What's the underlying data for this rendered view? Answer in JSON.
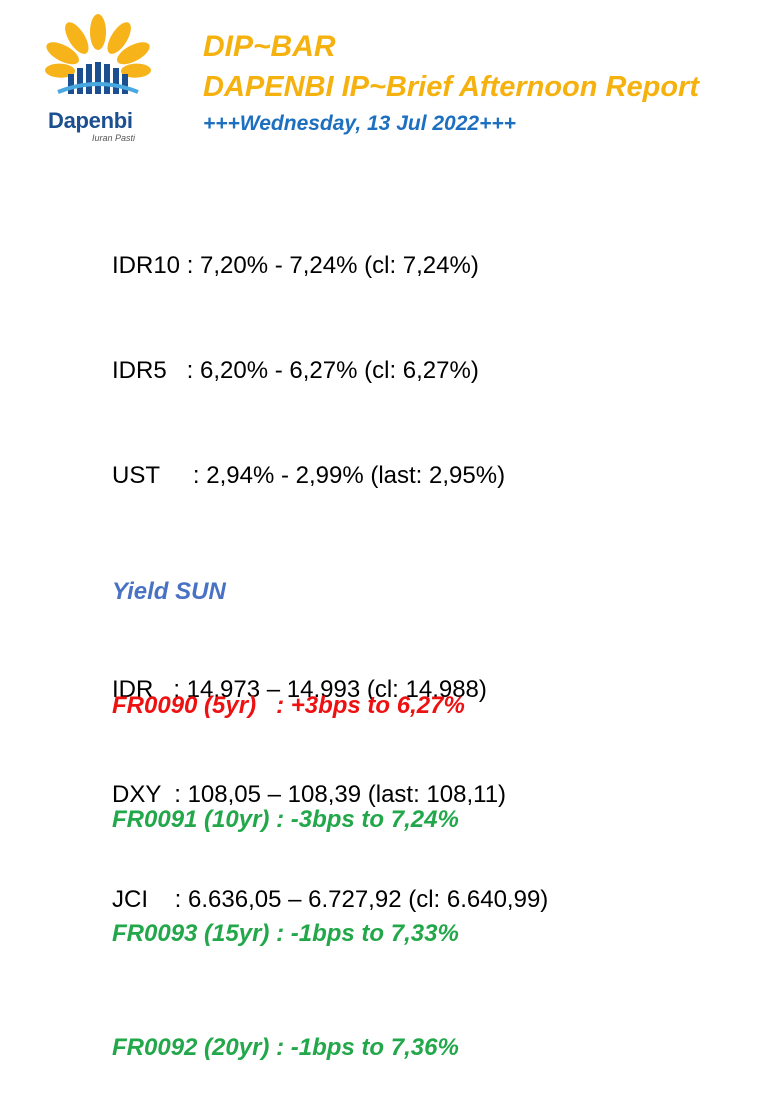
{
  "logo": {
    "name": "Dapenbi",
    "tagline": "Iuran Pasti",
    "colors": {
      "petal": "#f6b31a",
      "bar": "#1b4f8f",
      "wave": "#4aa8e0"
    }
  },
  "header": {
    "title": "DIP~BAR",
    "subtitle": "DAPENBI IP~Brief Afternoon Report",
    "date": "+++Wednesday, 13 Jul 2022+++"
  },
  "bonds": [
    "IDR10 : 7,20% - 7,24% (cl: 7,24%)",
    "IDR5   : 6,20% - 6,27% (cl: 6,27%)",
    "UST     : 2,94% - 2,99% (last: 2,95%)"
  ],
  "markets": [
    "IDR   : 14.973 – 14.993 (cl: 14.988)",
    "DXY  : 108,05 – 108,39 (last: 108,11)",
    "JCI    : 6.636,05 – 6.727,92 (cl: 6.640,99)"
  ],
  "yield": {
    "heading": "Yield SUN",
    "rows": [
      {
        "text": "FR0090 (5yr)   : +3bps to 6,27%",
        "color": "#ee1111"
      },
      {
        "text": "FR0091 (10yr) : -3bps to 7,24%",
        "color": "#22a84a"
      },
      {
        "text": "FR0093 (15yr) : -1bps to 7,33%",
        "color": "#22a84a"
      },
      {
        "text": "FR0092 (20yr) : -1bps to 7,36%",
        "color": "#22a84a"
      }
    ]
  }
}
